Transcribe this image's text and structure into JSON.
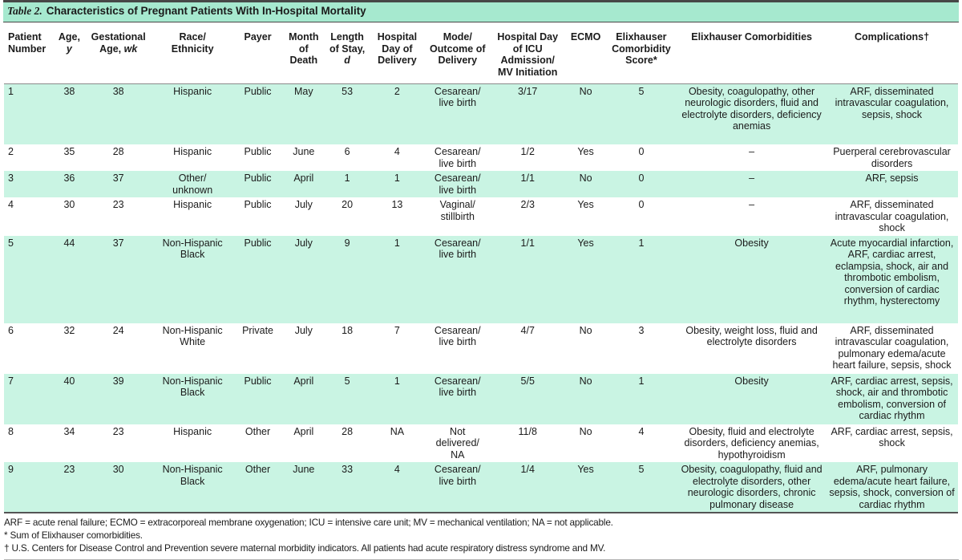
{
  "title": {
    "label": "Table 2.",
    "text": "Characteristics of Pregnant Patients With In-Hospital Mortality"
  },
  "colors": {
    "title_bar_green": "#a6e9cf",
    "row_stripe_green": "#c9f4e3",
    "rule_dark": "#474747",
    "rule_gray": "#8a8a8a"
  },
  "columns": [
    {
      "id": "patient-number",
      "header": "Patient\nNumber"
    },
    {
      "id": "age",
      "header": "Age,\n*y*"
    },
    {
      "id": "gestational-age",
      "header": "Gestational\nAge, *wk*"
    },
    {
      "id": "race-ethnicity",
      "header": "Race/\nEthnicity"
    },
    {
      "id": "payer",
      "header": "Payer"
    },
    {
      "id": "month-of-death",
      "header": "Month\nof\nDeath"
    },
    {
      "id": "length-of-stay",
      "header": "Length\nof Stay,\n*d*"
    },
    {
      "id": "hospital-day-of-delivery",
      "header": "Hospital\nDay of\nDelivery"
    },
    {
      "id": "mode-outcome-of-delivery",
      "header": "Mode/\nOutcome of\nDelivery"
    },
    {
      "id": "hospital-day-icu-mv",
      "header": "Hospital Day\nof ICU\nAdmission/\nMV Initiation"
    },
    {
      "id": "ecmo",
      "header": "ECMO"
    },
    {
      "id": "elixhauser-score",
      "header": "Elixhauser\nComorbidity\nScore*"
    },
    {
      "id": "elixhauser-comorbidities",
      "header": "Elixhauser Comorbidities"
    },
    {
      "id": "complications",
      "header": "Complications†"
    }
  ],
  "rows": [
    [
      "1",
      "38",
      "38",
      "Hispanic",
      "Public",
      "May",
      "53",
      "2",
      "Cesarean/\nlive birth",
      "3/17",
      "No",
      "5",
      "Obesity, coagulopathy, other neurologic disorders, fluid and electrolyte disorders, deficiency anemias",
      "ARF, disseminated intravascular coagulation, sepsis, shock"
    ],
    [
      "2",
      "35",
      "28",
      "Hispanic",
      "Public",
      "June",
      "6",
      "4",
      "Cesarean/\nlive birth",
      "1/2",
      "Yes",
      "0",
      "–",
      "Puerperal cerebrovascular disorders"
    ],
    [
      "3",
      "36",
      "37",
      "Other/\nunknown",
      "Public",
      "April",
      "1",
      "1",
      "Cesarean/\nlive birth",
      "1/1",
      "No",
      "0",
      "–",
      "ARF, sepsis"
    ],
    [
      "4",
      "30",
      "23",
      "Hispanic",
      "Public",
      "July",
      "20",
      "13",
      "Vaginal/\nstillbirth",
      "2/3",
      "Yes",
      "0",
      "–",
      "ARF, disseminated intravascular coagulation, shock"
    ],
    [
      "5",
      "44",
      "37",
      "Non-Hispanic\nBlack",
      "Public",
      "July",
      "9",
      "1",
      "Cesarean/\nlive birth",
      "1/1",
      "Yes",
      "1",
      "Obesity",
      "Acute myocardial infarction, ARF, cardiac arrest, eclampsia, shock, air and thrombotic embolism, conversion of cardiac rhythm, hysterectomy"
    ],
    [
      "6",
      "32",
      "24",
      "Non-Hispanic\nWhite",
      "Private",
      "July",
      "18",
      "7",
      "Cesarean/\nlive birth",
      "4/7",
      "No",
      "3",
      "Obesity, weight loss, fluid and electrolyte disorders",
      "ARF, disseminated intravascular coagulation, pulmonary edema/acute heart failure, sepsis, shock"
    ],
    [
      "7",
      "40",
      "39",
      "Non-Hispanic\nBlack",
      "Public",
      "April",
      "5",
      "1",
      "Cesarean/\nlive birth",
      "5/5",
      "No",
      "1",
      "Obesity",
      "ARF, cardiac arrest, sepsis, shock, air and thrombotic embolism, conversion of cardiac rhythm"
    ],
    [
      "8",
      "34",
      "23",
      "Hispanic",
      "Other",
      "April",
      "28",
      "NA",
      "Not\ndelivered/\nNA",
      "11/8",
      "No",
      "4",
      "Obesity, fluid and electrolyte disorders, deficiency anemias, hypothyroidism",
      "ARF, cardiac arrest, sepsis, shock"
    ],
    [
      "9",
      "23",
      "30",
      "Non-Hispanic\nBlack",
      "Other",
      "June",
      "33",
      "4",
      "Cesarean/\nlive birth",
      "1/4",
      "Yes",
      "5",
      "Obesity, coagulopathy, fluid and electrolyte disorders, other neurologic disorders, chronic pulmonary disease",
      "ARF, pulmonary edema/acute heart failure, sepsis, shock, conversion of cardiac rhythm"
    ]
  ],
  "footnotes": [
    "ARF = acute renal failure; ECMO = extracorporeal membrane oxygenation; ICU = intensive care unit; MV = mechanical ventilation; NA = not applicable.",
    "* Sum of Elixhauser comorbidities.",
    "† U.S. Centers for Disease Control and Prevention severe maternal morbidity indicators. All patients had acute respiratory distress syndrome and MV."
  ]
}
